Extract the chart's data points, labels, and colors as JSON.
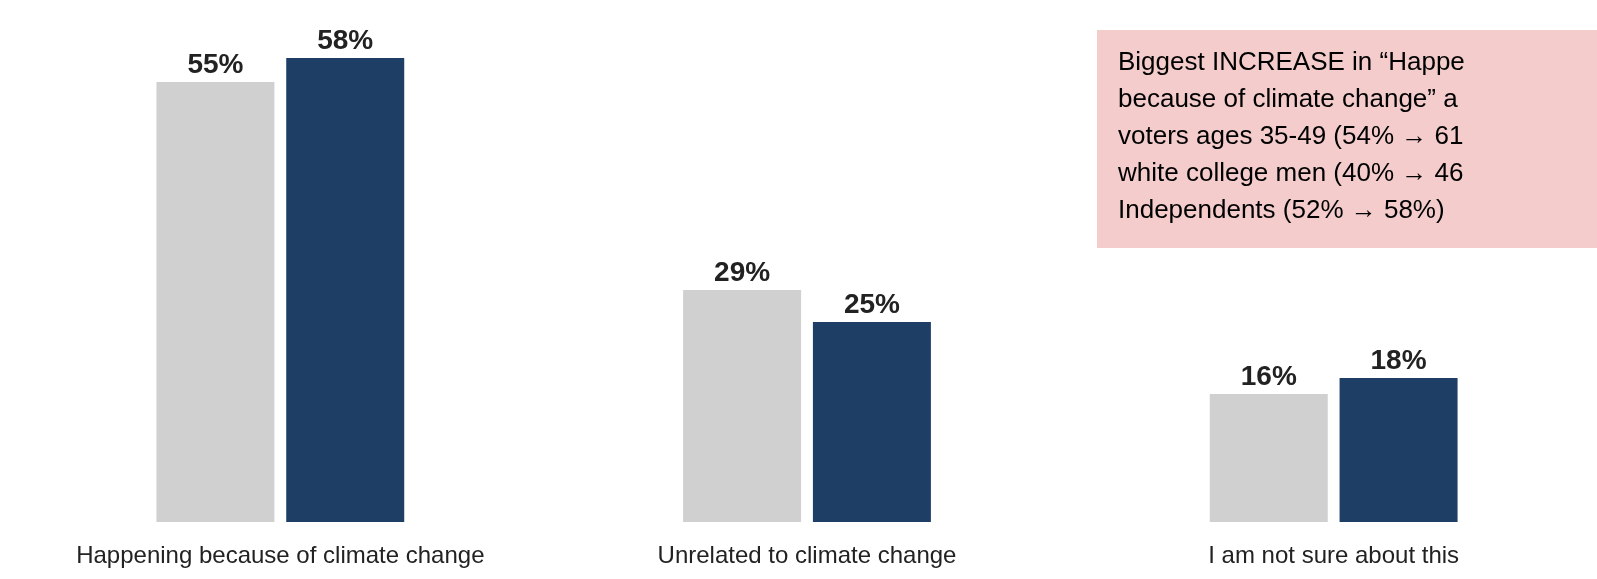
{
  "chart_data": {
    "type": "bar",
    "categories": [
      "Happening because of climate change",
      "Unrelated to climate change",
      "I am not sure about this"
    ],
    "series": [
      {
        "color": "#d0d0d0",
        "values": [
          55,
          29,
          16
        ],
        "value_labels": [
          "55%",
          "29%",
          "16%"
        ]
      },
      {
        "color": "#1f3e66",
        "values": [
          58,
          25,
          18
        ],
        "value_labels": [
          "58%",
          "25%",
          "18%"
        ]
      }
    ],
    "annotations": [
      "Biggest INCREASE in “Happe\nbecause of climate change” a\nvoters ages 35-49 (54% → 61\nwhite college men (40% → 46\nIndependents (52% → 58%)"
    ]
  }
}
